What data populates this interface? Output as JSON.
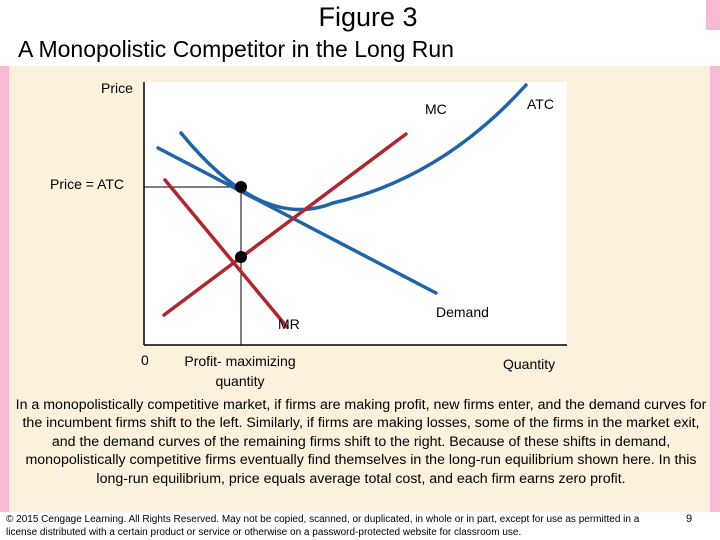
{
  "title": "Figure 3",
  "subtitle": "A Monopolistic Competitor in the Long Run",
  "diagram": {
    "y_axis_label": "Price",
    "x_axis_label": "Quantity",
    "origin_label": "0",
    "price_label": "Price = ATC",
    "quantity_label": "Profit- maximizing quantity",
    "curves": {
      "mc": "MC",
      "atc": "ATC",
      "demand": "Demand",
      "mr": "MR"
    },
    "colors": {
      "mc": "#b0252e",
      "mr": "#b0252e",
      "atc": "#1f64a8",
      "demand": "#1f64a8",
      "background": "#fbf1dc",
      "accent_bar": "#f7b9d4"
    }
  },
  "caption": "In a monopolistically competitive market, if firms are making profit, new firms enter, and the demand curves for the incumbent firms shift to the left. Similarly, if firms are making losses, some of the firms in the market exit, and the demand curves of the remaining firms shift to the right. Because of these shifts in demand, monopolistically competitive firms eventually find themselves in the long-run equilibrium shown here. In this long-run equilibrium, price equals average total cost, and each firm earns zero profit.",
  "footer": "© 2015 Cengage Learning. All Rights Reserved. May not be copied, scanned, or duplicated, in whole or in part, except for use as permitted in a license distributed with a certain product or service or otherwise on a password-protected website for classroom use.",
  "page_number": "9"
}
